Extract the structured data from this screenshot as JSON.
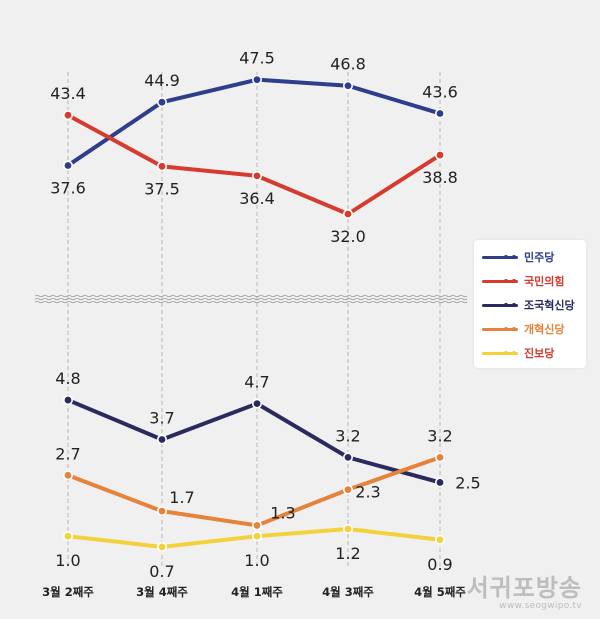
{
  "chart_data": [
    {
      "type": "line",
      "panel": "upper",
      "categories": [
        "3월 2째주",
        "3월 4째주",
        "4월 1째주",
        "4월 3째주",
        "4월 5째주"
      ],
      "series": [
        {
          "name": "민주당",
          "color": "#2e3d8c",
          "values": [
            37.6,
            44.9,
            47.5,
            46.8,
            43.6
          ],
          "labels": [
            "37.6",
            "44.9",
            "47.5",
            "46.8",
            "43.6"
          ]
        },
        {
          "name": "국민의힘",
          "color": "#d63b2f",
          "values": [
            43.4,
            37.5,
            36.4,
            32.0,
            38.8
          ],
          "labels": [
            "43.4",
            "37.5",
            "36.4",
            "32.0",
            "38.8"
          ]
        }
      ],
      "ylim": [
        29,
        50
      ]
    },
    {
      "type": "line",
      "panel": "lower",
      "categories": [
        "3월 2째주",
        "3월 4째주",
        "4월 1째주",
        "4월 3째주",
        "4월 5째주"
      ],
      "series": [
        {
          "name": "조국혁신당",
          "color": "#2a2a5e",
          "values": [
            4.8,
            3.7,
            4.7,
            3.2,
            2.5
          ],
          "labels": [
            "4.8",
            "3.7",
            "4.7",
            "3.2",
            "2.5"
          ]
        },
        {
          "name": "개혁신당",
          "color": "#e5833a",
          "values": [
            2.7,
            1.7,
            1.3,
            2.3,
            3.2
          ],
          "labels": [
            "2.7",
            "1.7",
            "1.3",
            "2.3",
            "3.2"
          ]
        },
        {
          "name": "진보당",
          "color": "#f2d13a",
          "values": [
            1.0,
            0.7,
            1.0,
            1.2,
            0.9
          ],
          "labels": [
            "1.0",
            "0.7",
            "1.0",
            "1.2",
            "0.9"
          ]
        }
      ],
      "ylim": [
        0,
        5.5
      ]
    }
  ],
  "legend": [
    {
      "label": "민주당",
      "color": "#2e3d8c"
    },
    {
      "label": "국민의힘",
      "color": "#d63b2f"
    },
    {
      "label": "조국혁신당",
      "color": "#2a2a5e"
    },
    {
      "label": "개혁신당",
      "color": "#e5833a"
    },
    {
      "label": "진보당",
      "color": "#f2d13a"
    }
  ],
  "watermark": {
    "title": "서귀포방송",
    "url": "www.seogwipo.tv"
  }
}
